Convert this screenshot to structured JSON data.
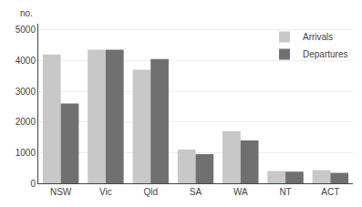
{
  "chart_data": {
    "type": "bar",
    "ylabel": "no.",
    "categories": [
      "NSW",
      "Vic",
      "Qld",
      "SA",
      "WA",
      "NT",
      "ACT"
    ],
    "series": [
      {
        "name": "Arrivals",
        "color": "#c8c8c8",
        "values": [
          4200,
          4350,
          3700,
          1100,
          1700,
          400,
          430
        ]
      },
      {
        "name": "Departures",
        "color": "#707070",
        "values": [
          2600,
          4350,
          4050,
          950,
          1400,
          380,
          340
        ]
      }
    ],
    "ylim": [
      0,
      5200
    ],
    "yticks": [
      0,
      1000,
      2000,
      3000,
      4000,
      5000
    ],
    "grid": true,
    "legend": "upper right"
  }
}
